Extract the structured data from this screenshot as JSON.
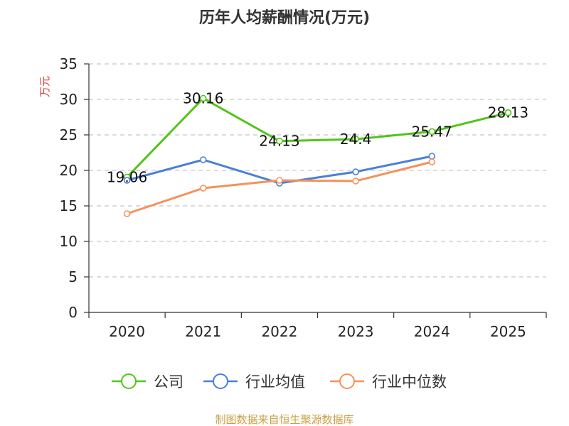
{
  "chart_data": {
    "type": "line",
    "title": "历年人均薪酬情况(万元)",
    "ylabel": "万元",
    "xlabel": "",
    "categories": [
      "2020",
      "2021",
      "2022",
      "2023",
      "2024",
      "2025"
    ],
    "ylim": [
      0,
      35
    ],
    "yticks": [
      0,
      5,
      10,
      15,
      20,
      25,
      30,
      35
    ],
    "grid": true,
    "legend_position": "bottom",
    "series": [
      {
        "name": "公司",
        "color": "#52c41a",
        "values": [
          19.06,
          30.16,
          24.13,
          24.4,
          25.47,
          28.13
        ],
        "labels": [
          "19.06",
          "30.16",
          "24.13",
          "24.4",
          "25.47",
          "28.13"
        ]
      },
      {
        "name": "行业均值",
        "color": "#4a7fd8",
        "values": [
          18.6,
          21.5,
          18.2,
          19.8,
          22.0,
          null
        ]
      },
      {
        "name": "行业中位数",
        "color": "#f5915a",
        "values": [
          13.9,
          17.5,
          18.6,
          18.5,
          21.2,
          null
        ]
      }
    ]
  },
  "source": "制图数据来自恒生聚源数据库"
}
